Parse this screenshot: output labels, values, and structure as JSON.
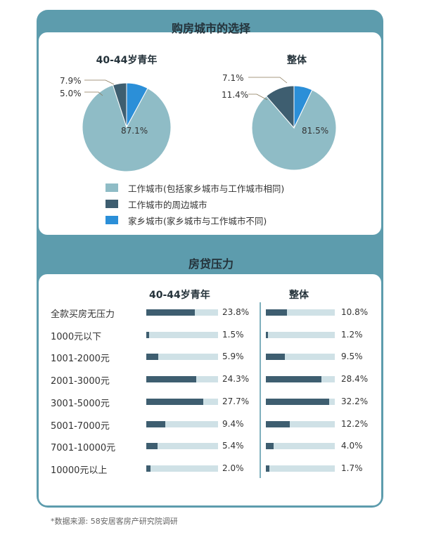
{
  "source_note": "*数据来源: 58安居客房产研究院调研",
  "colors": {
    "frame": "#5d9cad",
    "work_city": "#8fbcc6",
    "surrounding_city": "#3e5e70",
    "home_city": "#2b8fd8",
    "bar": "#3e5e70",
    "track": "#cfe1e6"
  },
  "chart_data": [
    {
      "type": "pie",
      "title": "购房城市的选择",
      "subtitle": "40-44岁青年",
      "categories": [
        "工作城市(包括家乡城市与工作城市相同)",
        "工作城市的周边城市",
        "家乡城市(家乡城市与工作城市不同)"
      ],
      "values": [
        87.1,
        5.0,
        7.9
      ],
      "labels": [
        "87.1%",
        "5.0%",
        "7.9%"
      ]
    },
    {
      "type": "pie",
      "title": "购房城市的选择",
      "subtitle": "整体",
      "categories": [
        "工作城市(包括家乡城市与工作城市相同)",
        "工作城市的周边城市",
        "家乡城市(家乡城市与工作城市不同)"
      ],
      "values": [
        81.5,
        11.4,
        7.1
      ],
      "labels": [
        "81.5%",
        "11.4%",
        "7.1%"
      ]
    },
    {
      "type": "bar",
      "title": "房贷压力",
      "categories": [
        "全款买房无压力",
        "1000元以下",
        "1001-2000元",
        "2001-3000元",
        "3001-5000元",
        "5001-7000元",
        "7001-10000元",
        "10000元以上"
      ],
      "series": [
        {
          "name": "40-44岁青年",
          "values": [
            23.8,
            1.5,
            5.9,
            24.3,
            27.7,
            9.4,
            5.4,
            2.0
          ],
          "labels": [
            "23.8%",
            "1.5%",
            "5.9%",
            "24.3%",
            "27.7%",
            "9.4%",
            "5.4%",
            "2.0%"
          ]
        },
        {
          "name": "整体",
          "values": [
            10.8,
            1.2,
            9.5,
            28.4,
            32.2,
            12.2,
            4.0,
            1.7
          ],
          "labels": [
            "10.8%",
            "1.2%",
            "9.5%",
            "28.4%",
            "32.2%",
            "12.2%",
            "4.0%",
            "1.7%"
          ]
        }
      ]
    }
  ]
}
